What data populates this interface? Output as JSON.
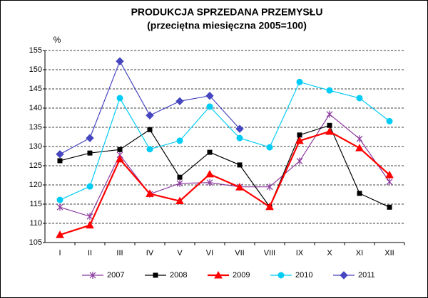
{
  "chart_data": {
    "type": "line",
    "title": "PRODUKCJA SPRZEDANA PRZEMYSŁU",
    "subtitle": "(przeciętna miesięczna 2005=100)",
    "y_label": "%",
    "categories": [
      "I",
      "II",
      "III",
      "IV",
      "V",
      "VI",
      "VII",
      "VIII",
      "IX",
      "X",
      "XI",
      "XII"
    ],
    "ylim": [
      105,
      155
    ],
    "yticks": [
      105,
      110,
      115,
      120,
      125,
      130,
      135,
      140,
      145,
      150,
      155
    ],
    "grid": true,
    "legend": "bottom",
    "series": [
      {
        "name": "2007",
        "color": "#8b3a9e",
        "marker": "asterisk",
        "values": [
          114.2,
          111.8,
          127.8,
          117.6,
          120.4,
          120.6,
          119.5,
          119.5,
          126.2,
          138.4,
          132,
          120.8
        ]
      },
      {
        "name": "2008",
        "color": "#000000",
        "marker": "square",
        "values": [
          126.3,
          128.3,
          129.2,
          134.4,
          122,
          128.5,
          125.2,
          114.3,
          133,
          135.5,
          117.8,
          114.2
        ]
      },
      {
        "name": "2009",
        "color": "#ff0000",
        "marker": "triangle",
        "values": [
          107,
          109.5,
          126.7,
          117.7,
          115.8,
          122.8,
          119.4,
          114.3,
          131.5,
          133.9,
          129.6,
          122.6
        ]
      },
      {
        "name": "2010",
        "color": "#00ccf5",
        "marker": "circle",
        "values": [
          116.1,
          119.6,
          142.6,
          129.3,
          131.5,
          140.4,
          132.2,
          129.8,
          146.8,
          144.6,
          142.6,
          136.6
        ]
      },
      {
        "name": "2011",
        "color": "#4646c0",
        "marker": "diamond",
        "values": [
          128,
          132.2,
          152.2,
          138.1,
          141.8,
          143.2,
          134.6,
          null,
          null,
          null,
          null,
          null
        ]
      }
    ]
  }
}
